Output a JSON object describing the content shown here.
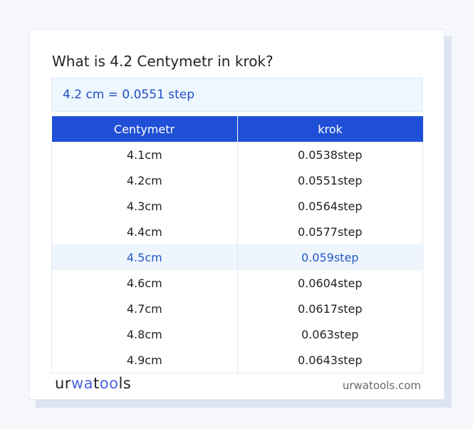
{
  "title": "What is 4.2 Centymetr in krok?",
  "result": "4.2 cm = 0.0551 step",
  "table": {
    "headers": [
      "Centymetr",
      "krok"
    ],
    "rows": [
      [
        "4.1cm",
        "0.0538step"
      ],
      [
        "4.2cm",
        "0.0551step"
      ],
      [
        "4.3cm",
        "0.0564step"
      ],
      [
        "4.4cm",
        "0.0577step"
      ],
      [
        "4.5cm",
        "0.059step"
      ],
      [
        "4.6cm",
        "0.0604step"
      ],
      [
        "4.7cm",
        "0.0617step"
      ],
      [
        "4.8cm",
        "0.063step"
      ],
      [
        "4.9cm",
        "0.0643step"
      ]
    ],
    "highlighted_row": 4
  },
  "footer": {
    "logo": "urwatools",
    "site": "urwatools.com"
  },
  "colors": {
    "header": "#1f4fd6",
    "accent": "#1f4fc4",
    "highlight_bg": "#eef5fd"
  }
}
